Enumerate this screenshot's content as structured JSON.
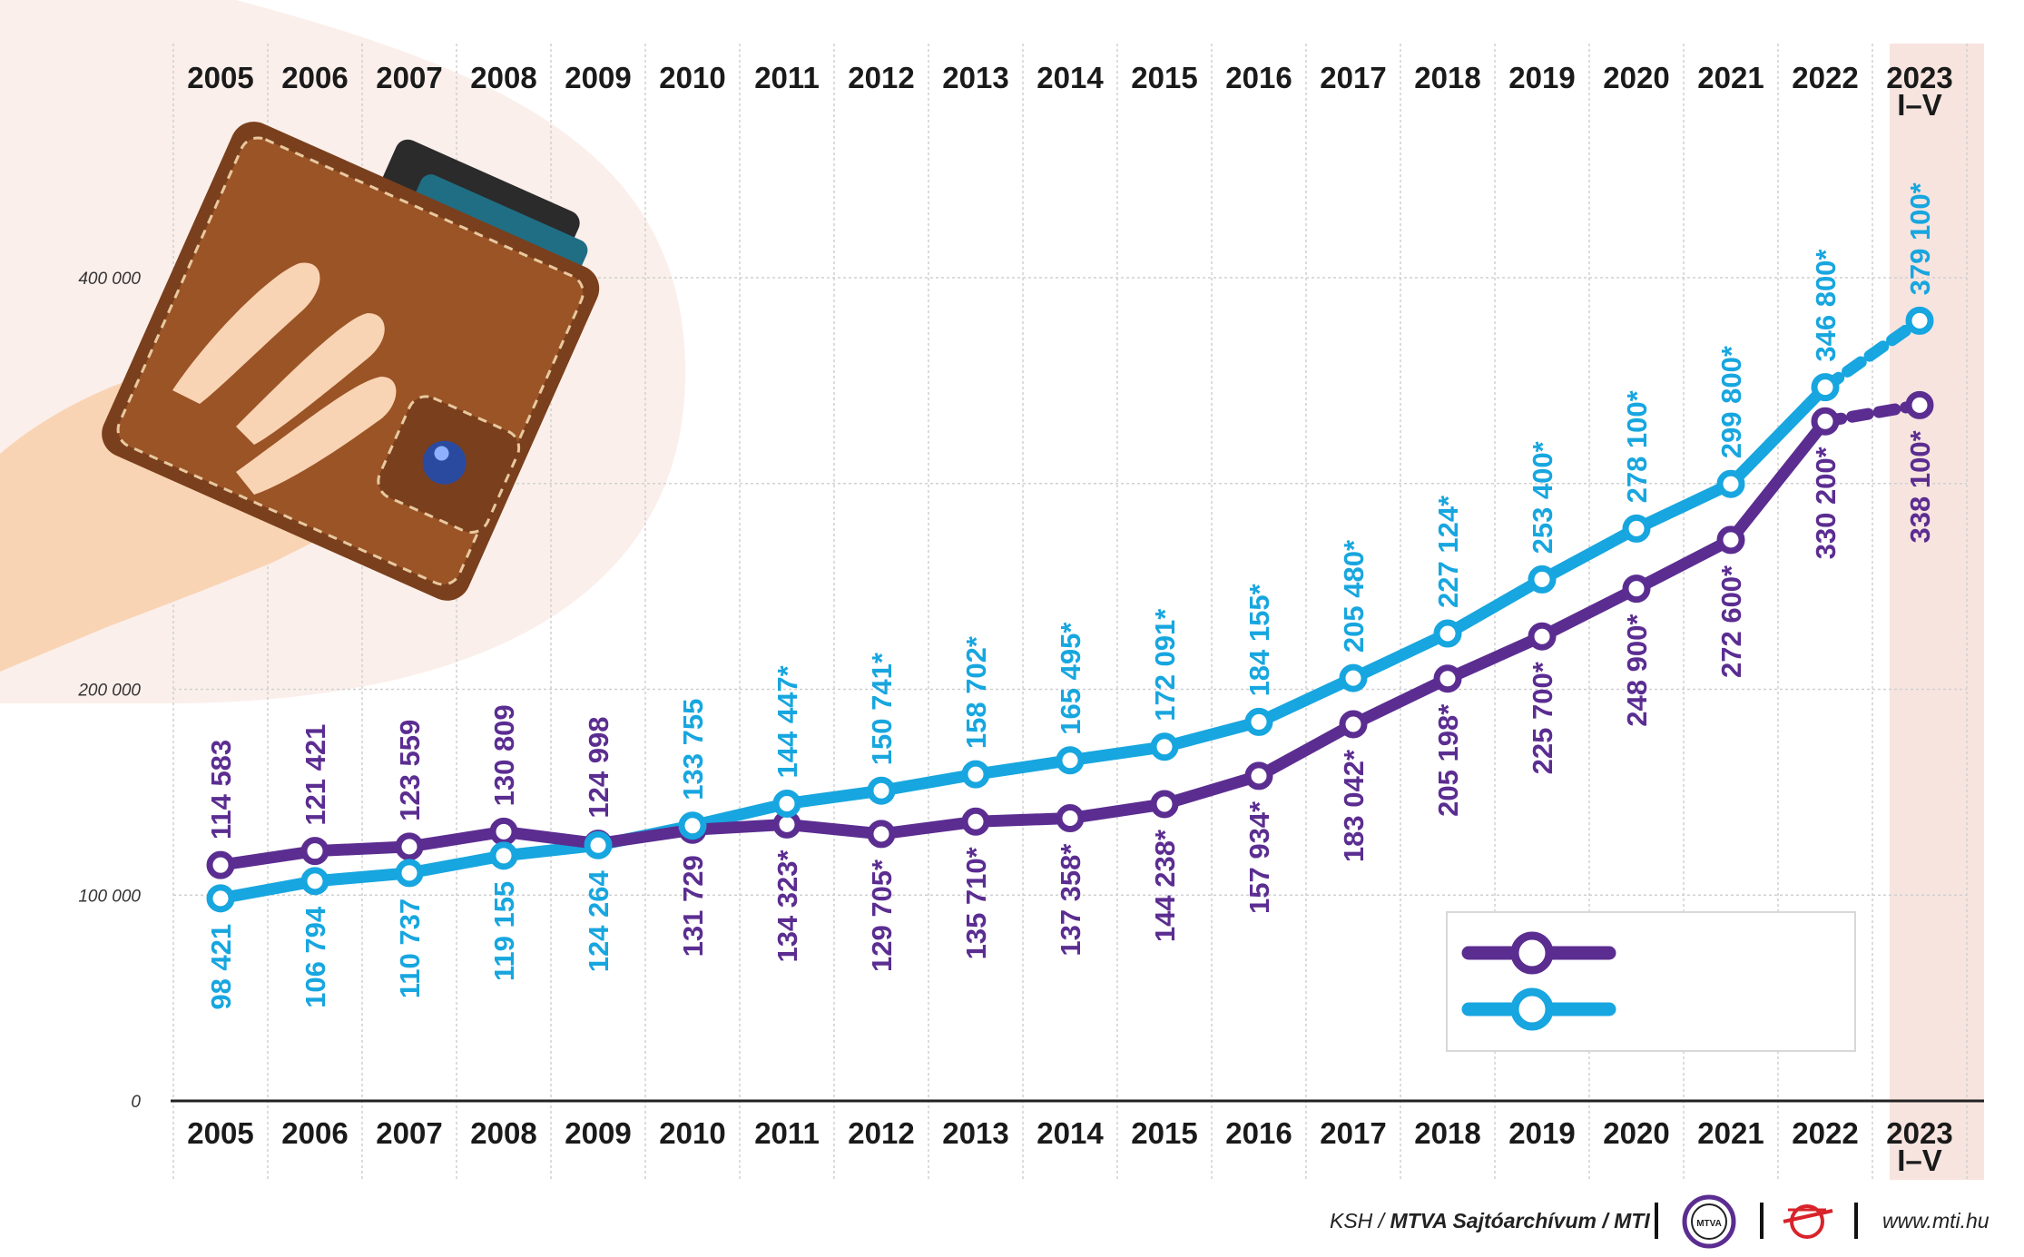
{
  "chart_data": {
    "type": "line",
    "categories": [
      "2005",
      "2006",
      "2007",
      "2008",
      "2009",
      "2010",
      "2011",
      "2012",
      "2013",
      "2014",
      "2015",
      "2016",
      "2017",
      "2018",
      "2019",
      "2020",
      "2021",
      "2022",
      "2023 I–V"
    ],
    "category_top": [
      "2005",
      "2006",
      "2007",
      "2008",
      "2009",
      "2010",
      "2011",
      "2012",
      "2013",
      "2014",
      "2015",
      "2016",
      "2017",
      "2018",
      "2019",
      "2020",
      "2021",
      "2022",
      "2023"
    ],
    "category_bottom": [
      "",
      "",
      "",
      "",
      "",
      "",
      "",
      "",
      "",
      "",
      "",
      "",
      "",
      "",
      "",
      "",
      "",
      "",
      "I–V"
    ],
    "y_ticks": [
      {
        "value": 0,
        "label": "0"
      },
      {
        "value": 100000,
        "label": "100 000"
      },
      {
        "value": 200000,
        "label": "200 000"
      },
      {
        "value": 400000,
        "label": "400 000"
      }
    ],
    "ylim": [
      0,
      400000
    ],
    "series": [
      {
        "name": "purple",
        "color": "#5b2d91",
        "values": [
          114583,
          121421,
          123559,
          130809,
          124998,
          131729,
          134323,
          129705,
          135710,
          137358,
          144238,
          157934,
          183042,
          205198,
          225700,
          248900,
          272600,
          330200,
          338100
        ],
        "labels": [
          "114 583",
          "121 421",
          "123 559",
          "130 809",
          "124 998",
          "131 729",
          "134 323*",
          "129 705*",
          "135 710*",
          "137 358*",
          "144 238*",
          "157 934*",
          "183 042*",
          "205 198*",
          "225 700*",
          "248 900*",
          "272 600*",
          "330 200*",
          "338 100*"
        ],
        "label_pos": [
          "above",
          "above",
          "above",
          "above",
          "above",
          "below",
          "below",
          "below",
          "below",
          "below",
          "below",
          "below",
          "below",
          "below",
          "below",
          "below",
          "below",
          "below",
          "below"
        ]
      },
      {
        "name": "cyan",
        "color": "#17a6df",
        "values": [
          98421,
          106794,
          110737,
          119155,
          124264,
          133755,
          144447,
          150741,
          158702,
          165495,
          172091,
          184155,
          205480,
          227124,
          253400,
          278100,
          299800,
          346800,
          379100
        ],
        "labels": [
          "98 421",
          "106 794",
          "110 737",
          "119 155",
          "124 264",
          "133 755",
          "144 447*",
          "150 741*",
          "158 702*",
          "165 495*",
          "172 091*",
          "184 155*",
          "205 480*",
          "227 124*",
          "253 400*",
          "278 100*",
          "299 800*",
          "346 800*",
          "379 100*"
        ],
        "label_pos": [
          "below",
          "below",
          "below",
          "below",
          "below",
          "above",
          "above",
          "above",
          "above",
          "above",
          "above",
          "above",
          "above",
          "above",
          "above",
          "above",
          "above",
          "above",
          "above"
        ]
      }
    ],
    "dashed_last_segment": true,
    "legend": {
      "position": "bottom-right",
      "entries": [
        "",
        ""
      ]
    },
    "grid": true
  },
  "colors": {
    "purple": "#5b2d91",
    "cyan": "#17a6df",
    "highlight": "#f7e4df",
    "blob": "#fbefeb",
    "grid": "#d0d0d0"
  },
  "footer": {
    "source": "KSH",
    "separator": " / ",
    "agency": "MTVA Sajtóarchívum / MTI",
    "logo_text": "MTVA",
    "url": "www.mti.hu"
  }
}
